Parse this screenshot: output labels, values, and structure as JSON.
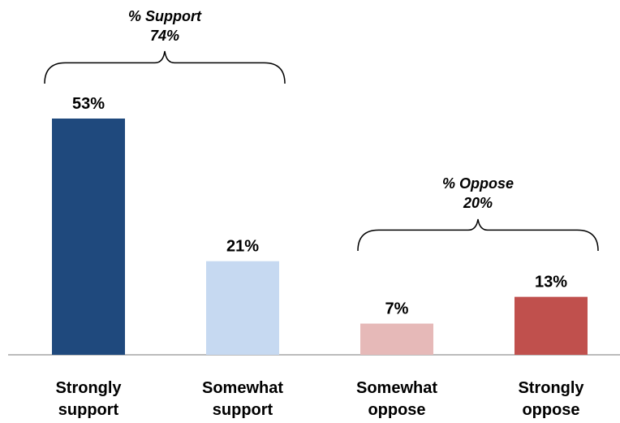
{
  "chart_data": {
    "type": "bar",
    "categories": [
      [
        "Strongly",
        "support"
      ],
      [
        "Somewhat",
        "support"
      ],
      [
        "Somewhat",
        "oppose"
      ],
      [
        "Strongly",
        "oppose"
      ]
    ],
    "values": [
      53,
      21,
      7,
      13
    ],
    "value_labels": [
      "53%",
      "21%",
      "7%",
      "13%"
    ],
    "colors": [
      "#1F497D",
      "#C6D9F1",
      "#E6B9B8",
      "#C0504D"
    ],
    "ylim": [
      0,
      53
    ],
    "grid": false,
    "groups": [
      {
        "title": "% Support",
        "value": "74%",
        "from": 0,
        "to": 1
      },
      {
        "title": "% Oppose",
        "value": "20%",
        "from": 2,
        "to": 3
      }
    ]
  }
}
